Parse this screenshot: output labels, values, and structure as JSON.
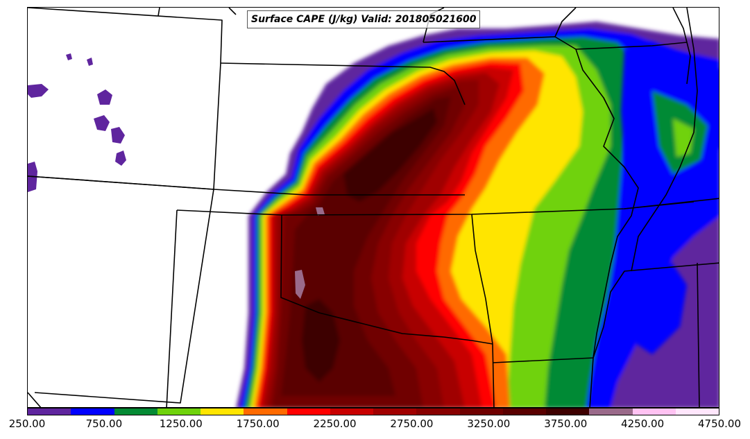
{
  "title": "Surface CAPE (J/kg) Valid: 201805021600",
  "colorbar": {
    "min": 250,
    "max": 4750,
    "interval": 250,
    "colors": [
      "#5f259e",
      "#0000ff",
      "#048a34",
      "#6fd20b",
      "#ffe500",
      "#ff6a00",
      "#ff0000",
      "#c80000",
      "#a00000",
      "#880000",
      "#700000",
      "#5a0000",
      "#3e0000",
      "#9a6a8a",
      "#ffc2f2",
      "#ffe6fc"
    ],
    "tick_labels": [
      "250.00",
      "750.00",
      "1250.00",
      "1750.00",
      "2250.00",
      "2750.00",
      "3250.00",
      "3750.00",
      "4250.00",
      "4750.00"
    ]
  }
}
